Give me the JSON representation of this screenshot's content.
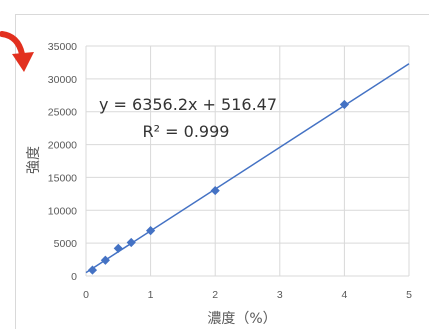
{
  "colors": {
    "series": "#4472c4",
    "trendline": "#4472c4",
    "grid": "#d9d9d9",
    "arrow": "#e2301f"
  },
  "icons": {
    "arrow": "red-curved-arrow-icon"
  },
  "chart_data": {
    "type": "scatter",
    "xlabel": "濃度（%）",
    "ylabel": "強度",
    "xlim": [
      0,
      5
    ],
    "ylim": [
      0,
      35000
    ],
    "xticks": [
      0,
      1,
      2,
      3,
      4,
      5
    ],
    "yticks": [
      0,
      5000,
      10000,
      15000,
      20000,
      25000,
      30000,
      35000
    ],
    "grid": true,
    "legend": "none",
    "points": [
      {
        "x": 0.1,
        "y": 900
      },
      {
        "x": 0.3,
        "y": 2400
      },
      {
        "x": 0.5,
        "y": 4200
      },
      {
        "x": 0.7,
        "y": 5100
      },
      {
        "x": 1.0,
        "y": 6900
      },
      {
        "x": 2.0,
        "y": 13000
      },
      {
        "x": 4.0,
        "y": 26100
      }
    ],
    "trendline": {
      "type": "linear",
      "slope": 6356.2,
      "intercept": 516.47,
      "x_range": [
        0,
        5
      ]
    },
    "annotations": {
      "equation": "y = 6356.2x + 516.47",
      "r_squared": "R² = 0.999"
    }
  }
}
